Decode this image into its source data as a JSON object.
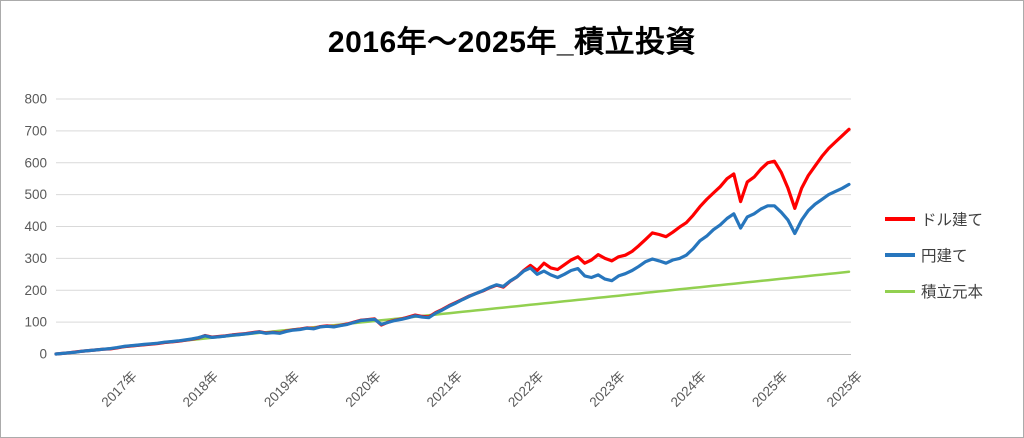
{
  "chart_data": {
    "type": "line",
    "title": "2016年～2025年_積立投資",
    "xlabel": "",
    "ylabel": "",
    "ylim": [
      0,
      800
    ],
    "y_ticks": [
      0,
      100,
      200,
      300,
      400,
      500,
      600,
      700,
      800
    ],
    "grid": "horizontal",
    "legend_position": "right",
    "x_axis": {
      "start_month": "2016-03",
      "end_month": "2025-12",
      "n_points": 118
    },
    "x_ticks": [
      {
        "label": "2017年",
        "month_index": 10
      },
      {
        "label": "2018年",
        "month_index": 22
      },
      {
        "label": "2019年",
        "month_index": 34
      },
      {
        "label": "2020年",
        "month_index": 46
      },
      {
        "label": "2021年",
        "month_index": 58
      },
      {
        "label": "2022年",
        "month_index": 70
      },
      {
        "label": "2023年",
        "month_index": 82
      },
      {
        "label": "2024年",
        "month_index": 94
      },
      {
        "label": "2025年",
        "month_index": 106
      },
      {
        "label": "2025年",
        "month_index": 117
      }
    ],
    "colors": {
      "grid": "#d9d9d9",
      "axis": "#bfbfbf",
      "tick_text": "#595959",
      "title_text": "#000000",
      "legend_text": "#404040"
    },
    "series": [
      {
        "key": "usd",
        "name": "ドル建て",
        "color": "#ff0000",
        "stroke_width": 3.2,
        "values": [
          0,
          2,
          4,
          7,
          9,
          11,
          13,
          15,
          16,
          19,
          23,
          25,
          27,
          29,
          31,
          33,
          36,
          38,
          40,
          43,
          46,
          50,
          58,
          53,
          55,
          57,
          60,
          62,
          64,
          67,
          70,
          66,
          68,
          66,
          72,
          76,
          78,
          82,
          80,
          86,
          88,
          86,
          90,
          94,
          100,
          106,
          108,
          110,
          91,
          100,
          106,
          110,
          116,
          122,
          118,
          116,
          130,
          140,
          152,
          162,
          172,
          182,
          190,
          198,
          208,
          216,
          210,
          228,
          242,
          262,
          278,
          262,
          285,
          270,
          265,
          280,
          295,
          305,
          285,
          295,
          312,
          300,
          292,
          305,
          310,
          322,
          340,
          360,
          380,
          375,
          368,
          382,
          398,
          412,
          435,
          462,
          485,
          505,
          525,
          550,
          565,
          478,
          540,
          555,
          580,
          600,
          605,
          570,
          520,
          457,
          520,
          560,
          590,
          620,
          645,
          665,
          685,
          705
        ]
      },
      {
        "key": "jpy",
        "name": "円建て",
        "color": "#2776bd",
        "stroke_width": 3.2,
        "values": [
          0,
          2,
          4,
          6,
          9,
          11,
          13,
          15,
          17,
          20,
          24,
          26,
          28,
          30,
          32,
          34,
          37,
          39,
          41,
          44,
          47,
          51,
          57,
          52,
          54,
          56,
          59,
          61,
          63,
          66,
          69,
          65,
          67,
          65,
          71,
          75,
          77,
          81,
          79,
          85,
          87,
          85,
          89,
          93,
          99,
          105,
          107,
          109,
          93,
          99,
          105,
          109,
          114,
          120,
          116,
          114,
          128,
          138,
          150,
          160,
          171,
          181,
          190,
          199,
          209,
          217,
          212,
          229,
          242,
          260,
          270,
          250,
          260,
          248,
          240,
          250,
          262,
          268,
          245,
          240,
          248,
          235,
          230,
          245,
          252,
          262,
          275,
          290,
          298,
          292,
          285,
          295,
          300,
          310,
          330,
          355,
          370,
          390,
          405,
          425,
          440,
          395,
          430,
          440,
          455,
          465,
          465,
          445,
          420,
          378,
          420,
          450,
          470,
          485,
          500,
          510,
          520,
          532
        ]
      },
      {
        "key": "principal",
        "name": "積立元本",
        "color": "#92d050",
        "stroke_width": 2.5,
        "linear": {
          "start": 0,
          "end": 258
        }
      }
    ]
  }
}
